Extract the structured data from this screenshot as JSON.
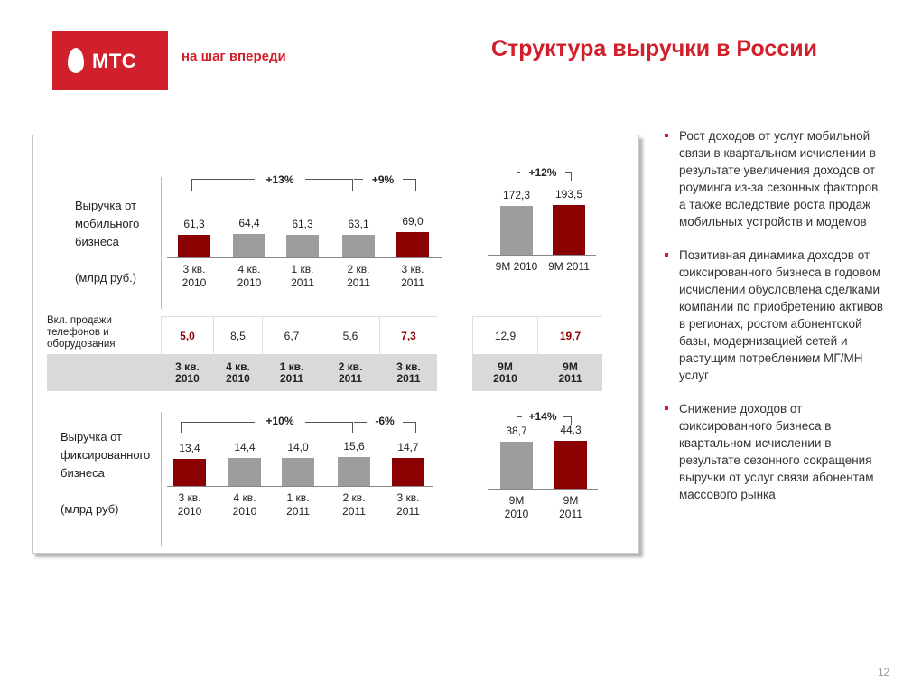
{
  "header": {
    "logo_text": "МТС",
    "slogan": "на шаг впереди",
    "title": "Структура выручки в России"
  },
  "colors": {
    "brand_red": "#d1202b",
    "bar_highlight": "#8b0000",
    "bar_normal": "#9d9d9d"
  },
  "mobile": {
    "label_1": "Выручка от",
    "label_2": "мобильного",
    "label_3": "бизнеса",
    "unit": "(млрд руб.)",
    "growth_1": "+13%",
    "growth_2": "+9%",
    "quarters": [
      {
        "value": "61,3",
        "p1": "3 кв.",
        "p2": "2010"
      },
      {
        "value": "64,4",
        "p1": "4 кв.",
        "p2": "2010"
      },
      {
        "value": "61,3",
        "p1": "1 кв.",
        "p2": "2011"
      },
      {
        "value": "63,1",
        "p1": "2 кв.",
        "p2": "2011"
      },
      {
        "value": "69,0",
        "p1": "3 кв.",
        "p2": "2011"
      }
    ],
    "nm_growth": "+12%",
    "nm": [
      {
        "value": "172,3",
        "period": "9M 2010"
      },
      {
        "value": "193,5",
        "period": "9M 2011"
      }
    ]
  },
  "equipment": {
    "label_1": "Вкл. продажи",
    "label_2": "телефонов и",
    "label_3": "оборудования",
    "quarter_values": [
      "5,0",
      "8,5",
      "6,7",
      "5,6",
      "7,3"
    ],
    "quarter_periods": [
      [
        "3 кв.",
        "2010"
      ],
      [
        "4 кв.",
        "2010"
      ],
      [
        "1 кв.",
        "2011"
      ],
      [
        "2 кв.",
        "2011"
      ],
      [
        "3 кв.",
        "2011"
      ]
    ],
    "nm_values": [
      "12,9",
      "19,7"
    ],
    "nm_periods": [
      [
        "9M",
        "2010"
      ],
      [
        "9M",
        "2011"
      ]
    ]
  },
  "fixed": {
    "label_1": "Выручка от",
    "label_2": "фиксированного",
    "label_3": "бизнеса",
    "unit": "(млрд руб)",
    "growth_1": "+10%",
    "growth_2": "-6%",
    "quarters": [
      {
        "value": "13,4",
        "p1": "3 кв.",
        "p2": "2010"
      },
      {
        "value": "14,4",
        "p1": "4 кв.",
        "p2": "2010"
      },
      {
        "value": "14,0",
        "p1": "1 кв.",
        "p2": "2011"
      },
      {
        "value": "15,6",
        "p1": "2 кв.",
        "p2": "2011"
      },
      {
        "value": "14,7",
        "p1": "3 кв.",
        "p2": "2011"
      }
    ],
    "nm_growth": "+14%",
    "nm": [
      {
        "value": "38,7",
        "p1": "9M",
        "p2": "2010"
      },
      {
        "value": "44,3",
        "p1": "9M",
        "p2": "2011"
      }
    ]
  },
  "bullets": [
    "Рост доходов от услуг мобильной связи в квартальном исчислении в результате увеличения доходов от роуминга из-за сезонных факторов, а также вследствие роста продаж мобильных устройств и модемов",
    "Позитивная динамика доходов от фиксированного бизнеса в годовом исчислении обусловлена сделками компании по приобретению активов в регионах, ростом абонентской базы, модернизацией сетей и растущим потреблением МГ/МН услуг",
    "Снижение доходов от фиксированного бизнеса в квартальном исчислении в результате сезонного сокращения выручки от услуг связи абонентам массового рынка"
  ],
  "page_number": "12",
  "chart_data": [
    {
      "type": "bar",
      "title": "Выручка от мобильного бизнеса (млрд руб.)",
      "categories": [
        "3 кв. 2010",
        "4 кв. 2010",
        "1 кв. 2011",
        "2 кв. 2011",
        "3 кв. 2011"
      ],
      "values": [
        61.3,
        64.4,
        61.3,
        63.1,
        69.0
      ]
    },
    {
      "type": "bar",
      "title": "Выручка от мобильного бизнеса (млрд руб.)",
      "categories": [
        "9M 2010",
        "9M 2011"
      ],
      "values": [
        172.3,
        193.5
      ]
    },
    {
      "type": "bar",
      "title": "Выручка от фиксированного бизнеса (млрд руб)",
      "categories": [
        "3 кв. 2010",
        "4 кв. 2010",
        "1 кв. 2011",
        "2 кв. 2011",
        "3 кв. 2011"
      ],
      "values": [
        13.4,
        14.4,
        14.0,
        15.6,
        14.7
      ]
    },
    {
      "type": "bar",
      "title": "Выручка от фиксированного бизнеса (млрд руб)",
      "categories": [
        "9M 2010",
        "9M 2011"
      ],
      "values": [
        38.7,
        44.3
      ]
    }
  ]
}
